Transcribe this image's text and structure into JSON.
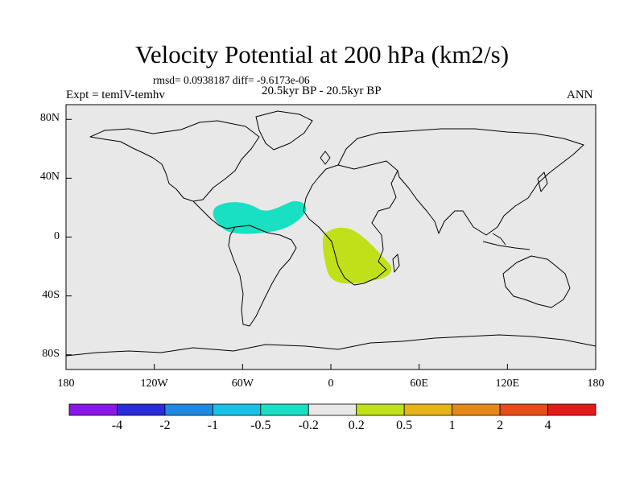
{
  "title": "Velocity Potential at 200 hPa (km2/s)",
  "stats": "rmsd= 0.0938187 diff= -9.6173e-06",
  "left_label": "Expt = temlV-temhv",
  "center_label": "20.5kyr BP - 20.5kyr BP",
  "right_label": "ANN",
  "lat_labels": [
    "80N",
    "40N",
    "0",
    "40S",
    "80S"
  ],
  "lon_labels": [
    "180",
    "120W",
    "60W",
    "0",
    "60E",
    "120E",
    "180"
  ],
  "colorbar": {
    "colors": [
      "#8a17e6",
      "#2b2bd9",
      "#1f88e0",
      "#19c0e6",
      "#19e0c2",
      "#e8e8e8",
      "#c2e019",
      "#e6b419",
      "#e68819",
      "#e64d19",
      "#e61919"
    ],
    "labels": [
      "-4",
      "-2",
      "-1",
      "-0.5",
      "-0.2",
      "0.2",
      "0.5",
      "1",
      "2",
      "4"
    ]
  },
  "fields": {
    "map_bg": "#e8e8e8",
    "negative_color": "#19e0c2",
    "positive_color": "#c2e019"
  }
}
